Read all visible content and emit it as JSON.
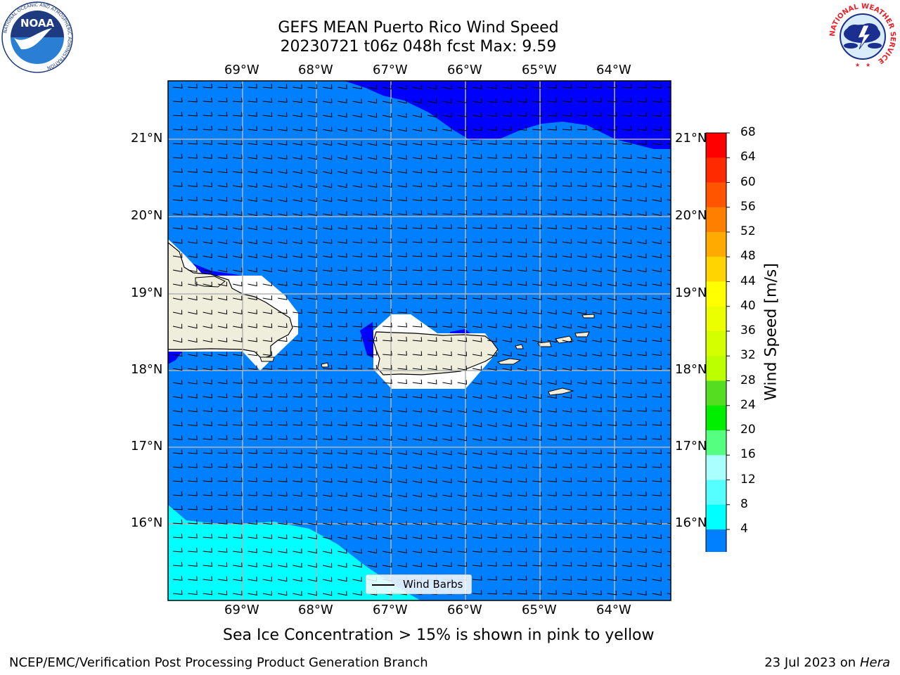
{
  "title": {
    "line1": "GEFS MEAN Puerto Rico Wind Speed",
    "line2": "20230721 t06z 048h fcst   Max: 9.59"
  },
  "map": {
    "lon_labels": [
      "69°W",
      "68°W",
      "67°W",
      "66°W",
      "65°W",
      "64°W"
    ],
    "lat_labels": [
      "21°N",
      "20°N",
      "19°N",
      "18°N",
      "17°N",
      "16°N"
    ],
    "lon_range": [
      -70.0,
      -63.25
    ],
    "lat_range": [
      15.0,
      21.75
    ],
    "colors": {
      "ocean_4_8": "#0080ff",
      "ocean_0_4": "#0000ff",
      "ocean_8_12": "#00ffff",
      "land": "#efeedc",
      "grid": "#b4b4b4",
      "barb": "#000000"
    },
    "legend_label": "Wind Barbs"
  },
  "colorbar": {
    "label": "Wind Speed [m/s]",
    "ticks": [
      "68",
      "64",
      "60",
      "56",
      "52",
      "48",
      "44",
      "40",
      "36",
      "32",
      "28",
      "24",
      "20",
      "16",
      "12",
      "8",
      "4"
    ],
    "colors": [
      "#ff0000",
      "#ff2a00",
      "#ff5500",
      "#ff8000",
      "#ffaa00",
      "#ffd400",
      "#ffff00",
      "#ecff00",
      "#d4ff00",
      "#bbff00",
      "#55dd22",
      "#00ee00",
      "#55ff80",
      "#aaffff",
      "#55ffff",
      "#00ffff",
      "#0080ff"
    ],
    "extend_color": "#0000ff"
  },
  "caption": "Sea Ice Concentration > 15% is shown in pink to yellow",
  "footer": {
    "left": "NCEP/EMC/Verification Post Processing Product Generation Branch",
    "right_prefix": "23 Jul 2023 on ",
    "right_host": "Hera"
  },
  "logos": {
    "noaa_text": "NOAA",
    "noaa_ring": "NATIONAL OCEANIC AND ATMOSPHERIC ADMINISTRATION",
    "noaa_ring_bottom": "U.S. DEPARTMENT OF COMMERCE",
    "nws_ring": "NATIONAL WEATHER SERVICE"
  }
}
